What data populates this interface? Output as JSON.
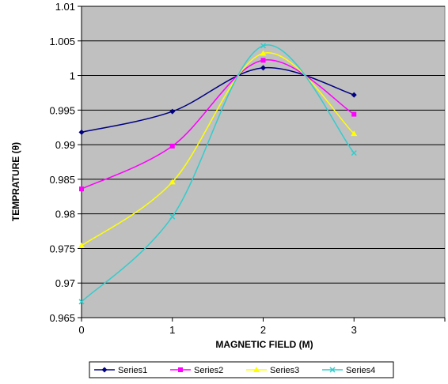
{
  "chart_data": {
    "type": "line",
    "title": "",
    "xlabel": "MAGNETIC FIELD (M)",
    "ylabel": "TEMPRATURE (θ)",
    "x": [
      0,
      1,
      2,
      3
    ],
    "xlim": [
      0,
      4
    ],
    "x_ticks": [
      0,
      1,
      2,
      3
    ],
    "x_tick_labels": [
      "0",
      "1",
      "2",
      "3"
    ],
    "ylim": [
      0.965,
      1.01
    ],
    "y_ticks": [
      0.965,
      0.97,
      0.975,
      0.98,
      0.985,
      0.99,
      0.995,
      1.0,
      1.005,
      1.01
    ],
    "y_tick_labels": [
      "0.965",
      "0.97",
      "0.975",
      "0.98",
      "0.985",
      "0.99",
      "0.995",
      "1",
      "1.005",
      "1.01"
    ],
    "grid": "horizontal",
    "background": "#c0c0c0",
    "legend_position": "bottom",
    "series": [
      {
        "name": "Series1",
        "values": [
          0.9918,
          0.9948,
          1.0011,
          0.9972
        ],
        "color": "#000080",
        "marker": "diamond"
      },
      {
        "name": "Series2",
        "values": [
          0.9836,
          0.9898,
          1.0022,
          0.9944
        ],
        "color": "#ff00ff",
        "marker": "square"
      },
      {
        "name": "Series3",
        "values": [
          0.9754,
          0.9846,
          1.0032,
          0.9916
        ],
        "color": "#ffff00",
        "marker": "triangle"
      },
      {
        "name": "Series4",
        "values": [
          0.9673,
          0.9796,
          1.0043,
          0.9888
        ],
        "color": "#33cccc",
        "marker": "x"
      }
    ]
  }
}
